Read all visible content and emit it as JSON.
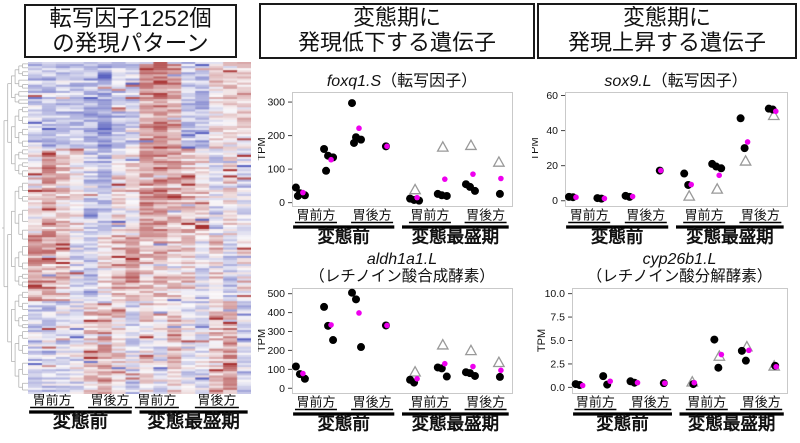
{
  "colors": {
    "dot_black": "#000000",
    "dot_magenta": "#ee00ee",
    "triangle_stroke": "#999999",
    "frame": "#c9c9c9",
    "axis_bar": "#000000",
    "heat_pos": "#a83232",
    "heat_neg": "#5a62c0",
    "dendrogram": "#b4b4b4"
  },
  "panels": {
    "left": {
      "title_lines": [
        "転写因子1252個",
        "の発現パターン"
      ]
    },
    "middle": {
      "title_lines": [
        "変態期に",
        "発現低下する遺伝子"
      ]
    },
    "right": {
      "title_lines": [
        "変態期に",
        "発現上昇する遺伝子"
      ]
    }
  },
  "axis": {
    "region_labels": [
      "胃前方",
      "胃後方",
      "胃前方",
      "胃後方"
    ],
    "stage_labels": [
      "変態前",
      "変態最盛期"
    ],
    "ylabel": "TPM"
  },
  "heatmap": {
    "n_rows": 161,
    "n_cols": 16,
    "seed": 42,
    "noise": 0.32,
    "fleck_prob": 0.05,
    "fleck_amp": 0.85,
    "bands": [
      {
        "until": 0.26,
        "means": [
          -0.3,
          -0.35,
          -0.3,
          -0.35,
          -0.4,
          -0.55,
          -0.35,
          -0.25,
          0.45,
          0.55,
          0.4,
          -0.3,
          -0.35,
          0.12,
          0.08,
          0.18
        ]
      },
      {
        "until": 0.52,
        "means": [
          0.05,
          0.4,
          0.15,
          0.05,
          -0.3,
          -0.35,
          0.05,
          0.1,
          0.45,
          0.55,
          0.35,
          0.25,
          0.15,
          -0.2,
          0.1,
          -0.15
        ]
      },
      {
        "until": 0.72,
        "means": [
          0.45,
          0.4,
          0.25,
          -0.2,
          -0.3,
          0.1,
          0.25,
          0.45,
          0.2,
          0.3,
          0.15,
          0.1,
          -0.2,
          0.15,
          -0.25,
          0.1
        ]
      },
      {
        "until": 1.0,
        "means": [
          -0.25,
          -0.3,
          -0.2,
          -0.12,
          0.15,
          0.35,
          0.1,
          -0.2,
          0.1,
          -0.1,
          0.18,
          -0.1,
          -0.15,
          0.2,
          0.45,
          -0.25
        ]
      }
    ]
  },
  "dendrogram": {
    "seed": 7,
    "max_depth": 6
  },
  "chart_data": [
    {
      "type": "scatter",
      "id": "foxq1",
      "title_gene": "foxq1.S",
      "title_desc": "（転写因子）",
      "two_line_title": false,
      "ylabel": "TPM",
      "yticks": [
        "0",
        "100",
        "200",
        "300"
      ],
      "ylim": [
        -10,
        330
      ],
      "x_region_labels": [
        "胃前方",
        "胃後方",
        "胃前方",
        "胃後方"
      ],
      "stage_labels": [
        "変態前",
        "変態最盛期"
      ],
      "clusters": [
        {
          "black": [
            45,
            28,
            22,
            20
          ],
          "magenta": [
            30
          ],
          "triangle": []
        },
        {
          "black": [
            160,
            140,
            135,
            95
          ],
          "magenta": [
            128
          ],
          "triangle": []
        },
        {
          "black": [
            297,
            195,
            188,
            178
          ],
          "magenta": [
            222
          ],
          "triangle": []
        },
        {
          "black": [
            168
          ],
          "magenta": [
            168
          ],
          "triangle": []
        },
        {
          "black": [
            12,
            8,
            6
          ],
          "magenta": [
            15
          ],
          "triangle": [
            38
          ]
        },
        {
          "black": [
            26,
            22,
            20
          ],
          "magenta": [
            70
          ],
          "triangle": [
            165
          ]
        },
        {
          "black": [
            55,
            47,
            35
          ],
          "magenta": [
            85
          ],
          "triangle": [
            170
          ]
        },
        {
          "black": [
            26
          ],
          "magenta": [
            72
          ],
          "triangle": [
            120
          ]
        }
      ]
    },
    {
      "type": "scatter",
      "id": "aldh1a1",
      "title_gene": "aldh1a1.L",
      "title_desc": "（レチノイン酸合成酵素）",
      "two_line_title": true,
      "ylabel": "TPM",
      "yticks": [
        "0",
        "100",
        "200",
        "300",
        "400",
        "500"
      ],
      "ylim": [
        -25,
        530
      ],
      "x_region_labels": [
        "胃前方",
        "胃後方",
        "胃前方",
        "胃後方"
      ],
      "stage_labels": [
        "変態前",
        "変態最盛期"
      ],
      "clusters": [
        {
          "black": [
            115,
            75,
            50
          ],
          "magenta": [
            78
          ],
          "triangle": []
        },
        {
          "black": [
            430,
            330,
            255
          ],
          "magenta": [
            335
          ],
          "triangle": []
        },
        {
          "black": [
            505,
            470,
            218
          ],
          "magenta": [
            398
          ],
          "triangle": []
        },
        {
          "black": [
            332
          ],
          "magenta": [
            332
          ],
          "triangle": []
        },
        {
          "black": [
            45,
            30
          ],
          "magenta": [
            50
          ],
          "triangle": [
            85
          ]
        },
        {
          "black": [
            110,
            105,
            62
          ],
          "magenta": [
            130
          ],
          "triangle": [
            228
          ]
        },
        {
          "black": [
            85,
            80,
            65
          ],
          "magenta": [
            115
          ],
          "triangle": [
            198
          ]
        },
        {
          "black": [
            60
          ],
          "magenta": [
            95
          ],
          "triangle": [
            135
          ]
        }
      ]
    },
    {
      "type": "scatter",
      "id": "sox9",
      "title_gene": "sox9.L",
      "title_desc": "（転写因子）",
      "two_line_title": false,
      "ylabel": "TPM",
      "yticks": [
        "0",
        "20",
        "40",
        "60"
      ],
      "ylim": [
        -3,
        62
      ],
      "x_region_labels": [
        "胃前方",
        "胃後方",
        "胃前方",
        "胃後方"
      ],
      "stage_labels": [
        "変態前",
        "変態最盛期"
      ],
      "clusters": [
        {
          "black": [
            2.2,
            2.0
          ],
          "magenta": [
            2.0
          ],
          "triangle": []
        },
        {
          "black": [
            1.5,
            1.2
          ],
          "magenta": [
            1.3
          ],
          "triangle": []
        },
        {
          "black": [
            2.8,
            2.2
          ],
          "magenta": [
            2.4
          ],
          "triangle": []
        },
        {
          "black": [
            17.2
          ],
          "magenta": [
            17.2
          ],
          "triangle": []
        },
        {
          "black": [
            15.5,
            9
          ],
          "magenta": [
            9.2
          ],
          "triangle": [
            2.5
          ]
        },
        {
          "black": [
            21,
            19.5,
            18.5
          ],
          "magenta": [
            14.5
          ],
          "triangle": [
            6.5
          ]
        },
        {
          "black": [
            47,
            30
          ],
          "magenta": [
            33.5
          ],
          "triangle": [
            22.5
          ]
        },
        {
          "black": [
            52.5,
            52
          ],
          "magenta": [
            51
          ],
          "triangle": [
            48.5
          ]
        }
      ]
    },
    {
      "type": "scatter",
      "id": "cyp26b1",
      "title_gene": "cyp26b1.L",
      "title_desc": "（レチノイン酸分解酵素）",
      "two_line_title": true,
      "ylabel": "TPM",
      "yticks": [
        "0.0",
        "2.5",
        "5.0",
        "7.5",
        "10.0"
      ],
      "ylim": [
        -0.6,
        10.6
      ],
      "x_region_labels": [
        "胃前方",
        "胃後方",
        "胃前方",
        "胃後方"
      ],
      "stage_labels": [
        "変態前",
        "変態最盛期"
      ],
      "clusters": [
        {
          "black": [
            0.35,
            0.25
          ],
          "magenta": [
            0.2
          ],
          "triangle": []
        },
        {
          "black": [
            1.2,
            0.3
          ],
          "magenta": [
            0.65
          ],
          "triangle": []
        },
        {
          "black": [
            0.65,
            0.5
          ],
          "magenta": [
            0.5
          ],
          "triangle": []
        },
        {
          "black": [
            0.45
          ],
          "magenta": [
            0.45
          ],
          "triangle": []
        },
        {
          "black": [
            0.35
          ],
          "magenta": [
            0.5
          ],
          "triangle": [
            0.55
          ]
        },
        {
          "black": [
            5.1,
            2.1
          ],
          "magenta": [
            3.5
          ],
          "triangle": [
            3.3
          ]
        },
        {
          "black": [
            3.9,
            2.85
          ],
          "magenta": [
            3.95
          ],
          "triangle": [
            4.3
          ]
        },
        {
          "black": [
            2.3
          ],
          "magenta": [
            2.2
          ],
          "triangle": [
            2.25
          ]
        }
      ]
    }
  ]
}
